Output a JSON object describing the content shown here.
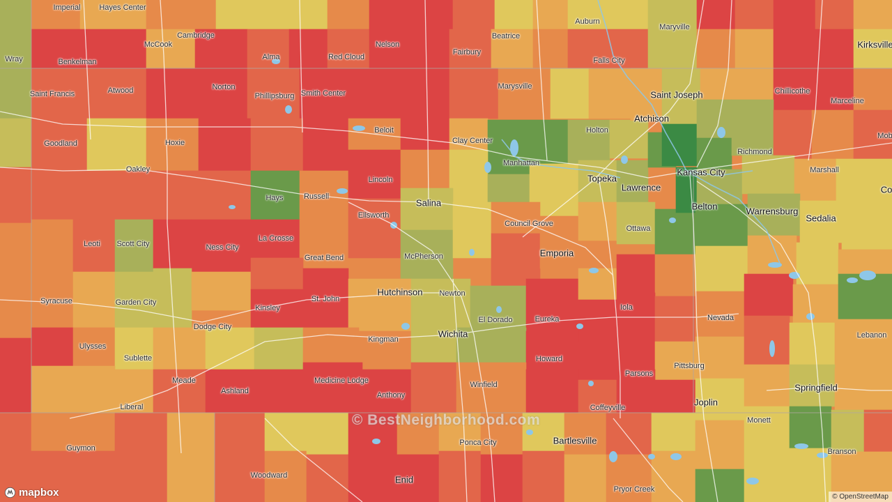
{
  "colors": {
    "dark_green": "#3b8a44",
    "green": "#6a9a4a",
    "olive": "#a8b05a",
    "yellow_green": "#c6bd5a",
    "yellow": "#e0c85c",
    "light_orange": "#e8a852",
    "orange": "#e68a4a",
    "red_orange": "#e2664a",
    "red": "#dc4444",
    "water": "#8ec7e8",
    "road": "#ffffff"
  },
  "places": [
    {
      "name": "Imperial",
      "major": false
    },
    {
      "name": "Hayes Center",
      "major": false
    },
    {
      "name": "Auburn",
      "major": false
    },
    {
      "name": "Maryville",
      "major": false
    },
    {
      "name": "Kirksville",
      "major": true
    },
    {
      "name": "Wray",
      "major": false
    },
    {
      "name": "McCook",
      "major": false
    },
    {
      "name": "Cambridge",
      "major": false
    },
    {
      "name": "Alma",
      "major": false
    },
    {
      "name": "Red Cloud",
      "major": false
    },
    {
      "name": "Nelson",
      "major": false
    },
    {
      "name": "Fairbury",
      "major": false
    },
    {
      "name": "Beatrice",
      "major": false
    },
    {
      "name": "Benkelman",
      "major": false
    },
    {
      "name": "Falls City",
      "major": false
    },
    {
      "name": "Saint Francis",
      "major": false
    },
    {
      "name": "Atwood",
      "major": false
    },
    {
      "name": "Norton",
      "major": false
    },
    {
      "name": "Phillipsburg",
      "major": false
    },
    {
      "name": "Smith Center",
      "major": false
    },
    {
      "name": "Marysville",
      "major": false
    },
    {
      "name": "Saint Joseph",
      "major": true
    },
    {
      "name": "Chillicothe",
      "major": false
    },
    {
      "name": "Marceline",
      "major": false
    },
    {
      "name": "Goodland",
      "major": false
    },
    {
      "name": "Hoxie",
      "major": false
    },
    {
      "name": "Beloit",
      "major": false
    },
    {
      "name": "Clay Center",
      "major": false
    },
    {
      "name": "Holton",
      "major": false
    },
    {
      "name": "Atchison",
      "major": true
    },
    {
      "name": "Richmond",
      "major": false
    },
    {
      "name": "Mob",
      "major": false
    },
    {
      "name": "Oakley",
      "major": false
    },
    {
      "name": "Manhattan",
      "major": false
    },
    {
      "name": "Kansas City",
      "major": true
    },
    {
      "name": "Marshall",
      "major": false
    },
    {
      "name": "Lincoln",
      "major": false
    },
    {
      "name": "Topeka",
      "major": true
    },
    {
      "name": "Lawrence",
      "major": true
    },
    {
      "name": "Co",
      "major": true
    },
    {
      "name": "Hays",
      "major": false
    },
    {
      "name": "Russell",
      "major": false
    },
    {
      "name": "Salina",
      "major": true
    },
    {
      "name": "Belton",
      "major": true
    },
    {
      "name": "Warrensburg",
      "major": true
    },
    {
      "name": "Sedalia",
      "major": true
    },
    {
      "name": "Ellsworth",
      "major": false
    },
    {
      "name": "Council Grove",
      "major": false
    },
    {
      "name": "Ottawa",
      "major": false
    },
    {
      "name": "Leoti",
      "major": false
    },
    {
      "name": "Scott City",
      "major": false
    },
    {
      "name": "Ness City",
      "major": false
    },
    {
      "name": "La Crosse",
      "major": false
    },
    {
      "name": "Emporia",
      "major": true
    },
    {
      "name": "Great Bend",
      "major": false
    },
    {
      "name": "McPherson",
      "major": false
    },
    {
      "name": "Hutchinson",
      "major": true
    },
    {
      "name": "Newton",
      "major": false
    },
    {
      "name": "Syracuse",
      "major": false
    },
    {
      "name": "Garden City",
      "major": false
    },
    {
      "name": "St. John",
      "major": false
    },
    {
      "name": "Iola",
      "major": false
    },
    {
      "name": "Kinsley",
      "major": false
    },
    {
      "name": "Dodge City",
      "major": false
    },
    {
      "name": "El Dorado",
      "major": false
    },
    {
      "name": "Eureka",
      "major": false
    },
    {
      "name": "Nevada",
      "major": false
    },
    {
      "name": "Wichita",
      "major": true
    },
    {
      "name": "Lebanon",
      "major": false
    },
    {
      "name": "Ulysses",
      "major": false
    },
    {
      "name": "Kingman",
      "major": false
    },
    {
      "name": "Sublette",
      "major": false
    },
    {
      "name": "Howard",
      "major": false
    },
    {
      "name": "Pittsburg",
      "major": false
    },
    {
      "name": "Parsons",
      "major": false
    },
    {
      "name": "Meade",
      "major": false
    },
    {
      "name": "Medicine Lodge",
      "major": false
    },
    {
      "name": "Winfield",
      "major": false
    },
    {
      "name": "Springfield",
      "major": true
    },
    {
      "name": "Ashland",
      "major": false
    },
    {
      "name": "Anthony",
      "major": false
    },
    {
      "name": "Joplin",
      "major": true
    },
    {
      "name": "Liberal",
      "major": false
    },
    {
      "name": "Coffeyville",
      "major": false
    },
    {
      "name": "Bartlesville",
      "major": true
    },
    {
      "name": "Monett",
      "major": false
    },
    {
      "name": "Guymon",
      "major": false
    },
    {
      "name": "Ponca City",
      "major": false
    },
    {
      "name": "Branson",
      "major": false
    },
    {
      "name": "Woodward",
      "major": false
    },
    {
      "name": "Enid",
      "major": true
    },
    {
      "name": "Pryor Creek",
      "major": false
    }
  ],
  "watermark": "© BestNeighborhood.com",
  "mapbox_label": "mapbox",
  "attribution": "© OpenStreetMap"
}
